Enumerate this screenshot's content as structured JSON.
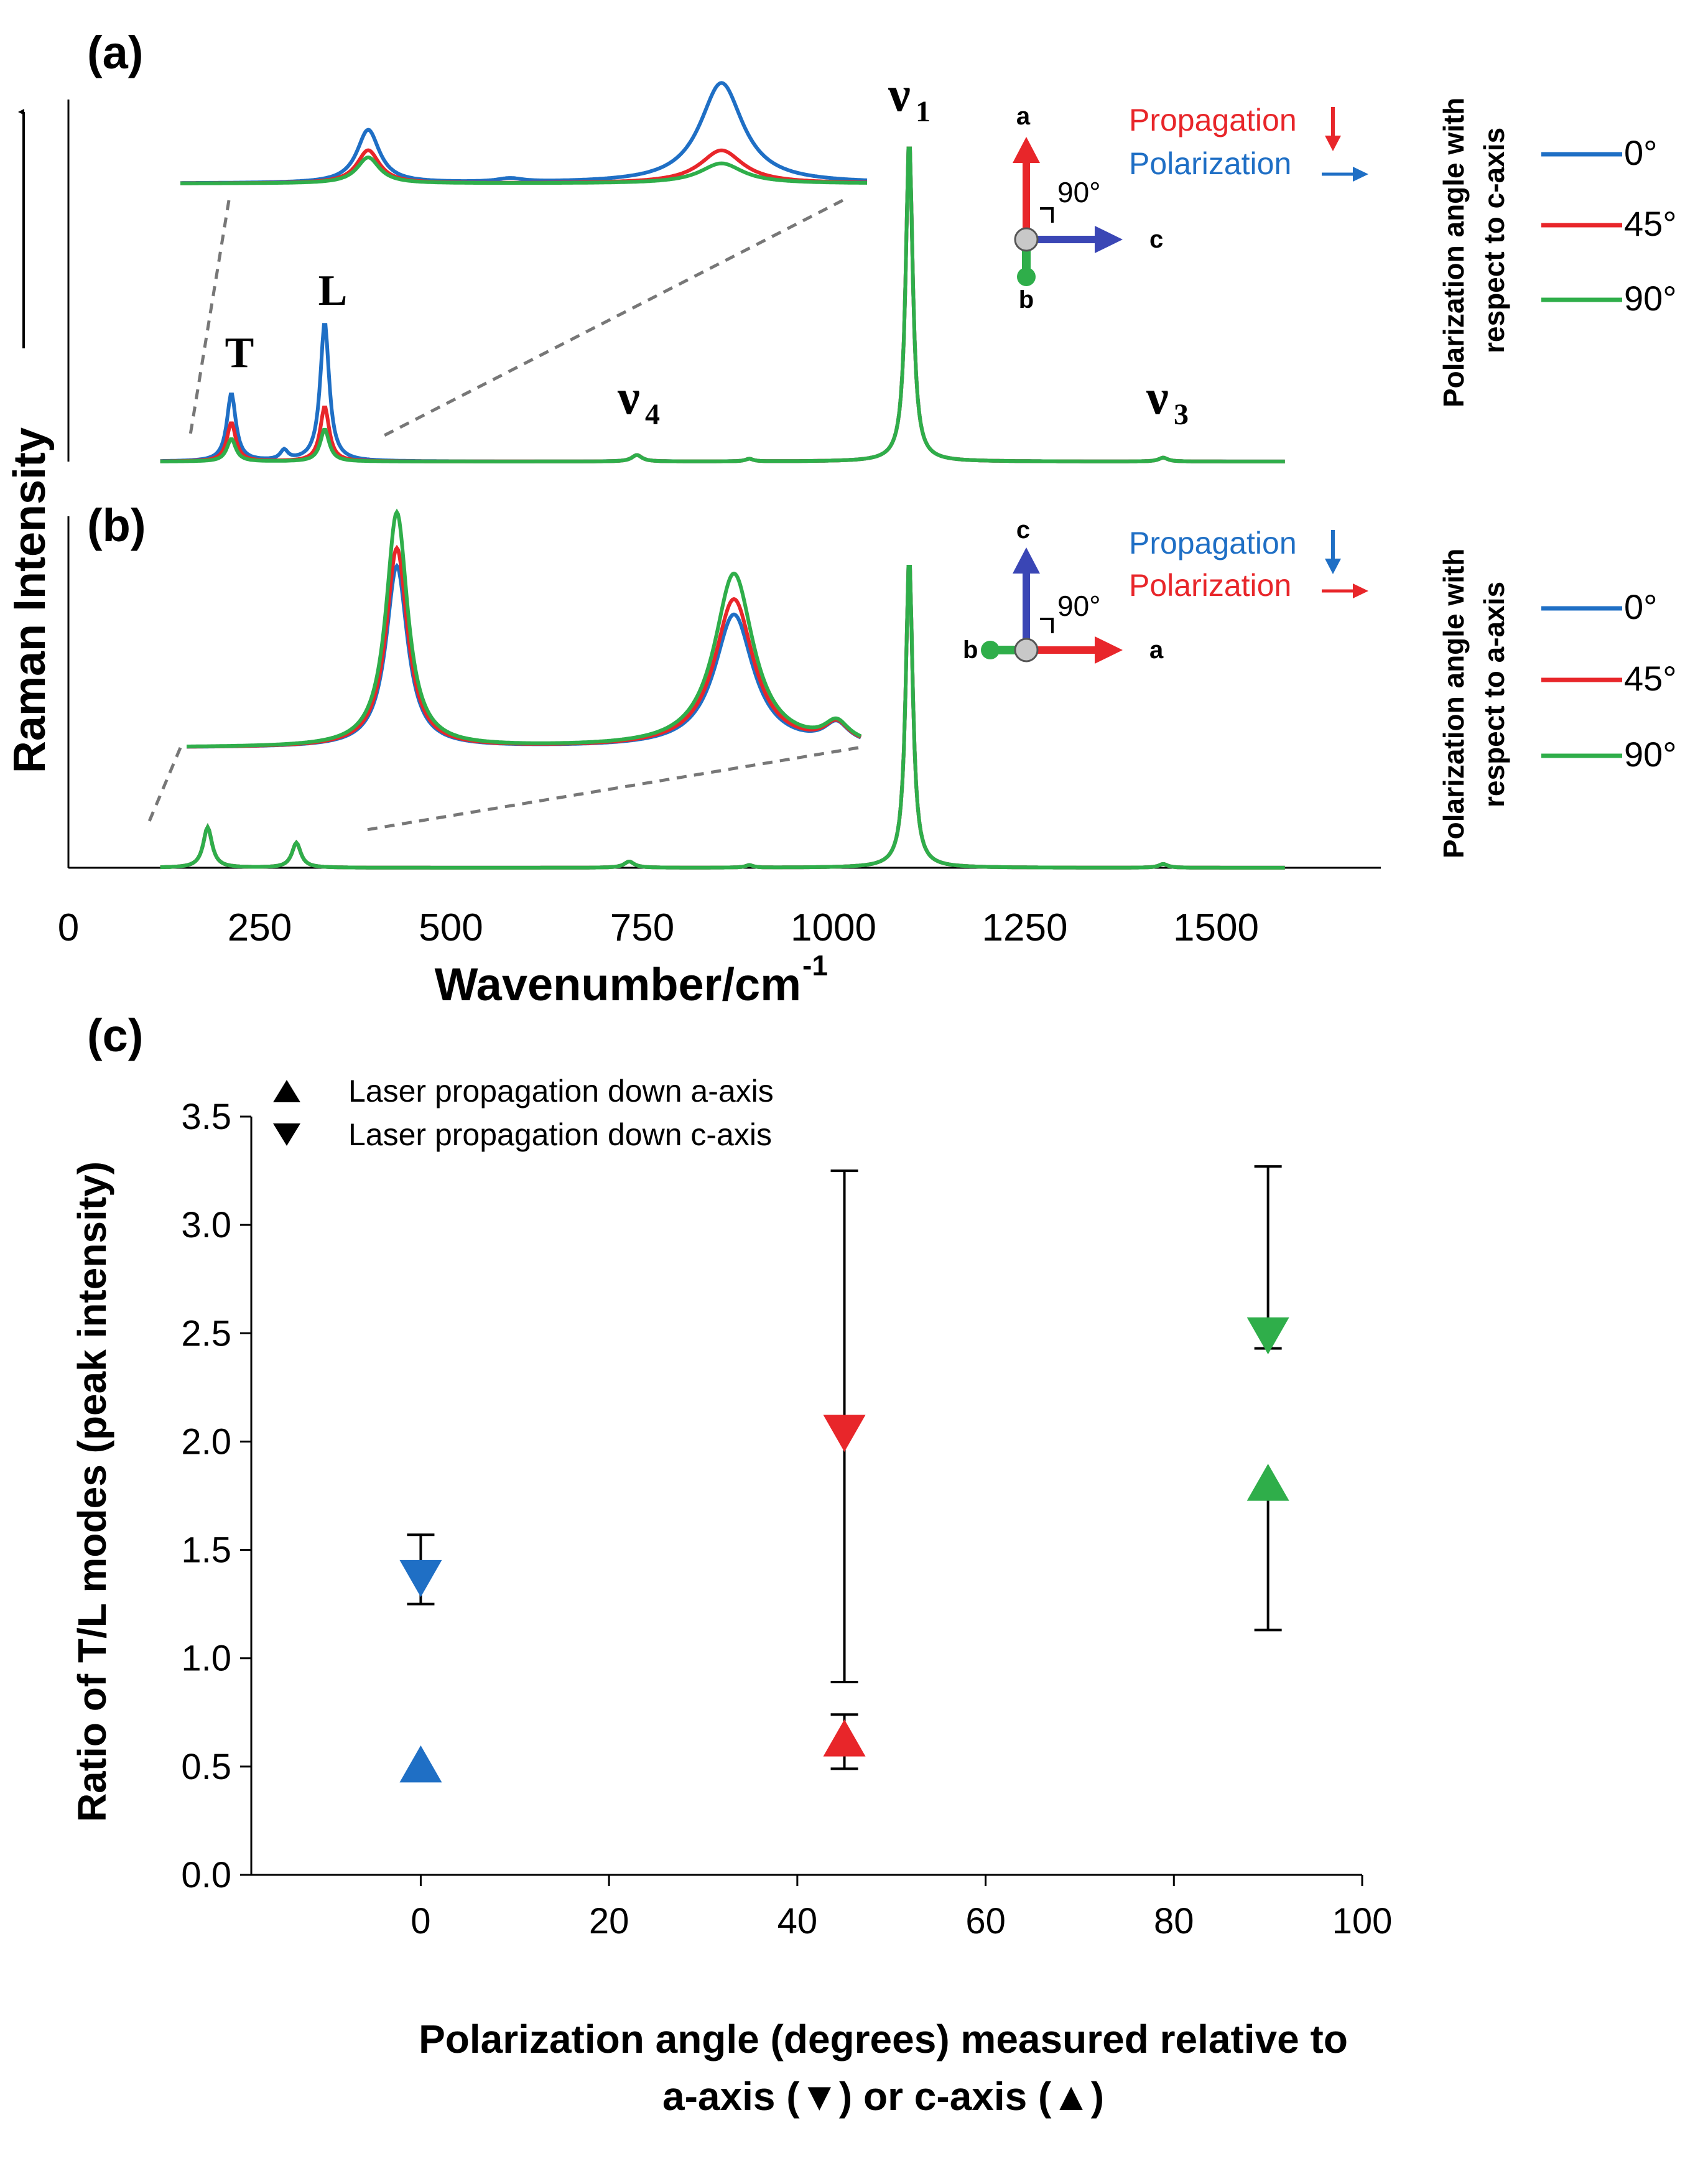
{
  "chart_data": [
    {
      "panel": "(a)",
      "type": "line",
      "title": "",
      "ylabel": "Raman Intensity",
      "peak_labels": [
        "T",
        "L",
        "ν4",
        "ν1",
        "ν3"
      ],
      "peak_label_subs": {
        "ν4": "4",
        "ν1": "1",
        "ν3": "3"
      },
      "peak_label_base": "ν",
      "peaks_wavenumber": {
        "T": 213,
        "L": 335,
        "ν4": 743,
        "ν1": 1099,
        "ν3": 1431
      },
      "legend_title": "Polarization angle with respect to c-axis",
      "legend_title_lines": [
        "Polarization angle with",
        "respect to c-axis"
      ],
      "series": [
        {
          "name": "0°",
          "color": "#1f6fc5",
          "main_peaks": {
            "T": 0.21,
            "L": 0.43,
            "ν1": 1.0
          },
          "inset_peaks": [
            0.45,
            0.85
          ]
        },
        {
          "name": "45°",
          "color": "#e8262a",
          "main_peaks": {
            "T": 0.12,
            "L": 0.17,
            "ν1": 1.0
          },
          "inset_peaks": [
            0.28,
            0.28
          ]
        },
        {
          "name": "90°",
          "color": "#2fae4a",
          "main_peaks": {
            "T": 0.07,
            "L": 0.1,
            "ν1": 1.0
          },
          "inset_peaks": [
            0.22,
            0.17
          ]
        }
      ],
      "geometry": {
        "propagation": "Propagation",
        "polarization": "Polarization",
        "propagation_color": "#e8262a",
        "polarization_color": "#1f6fc5",
        "axes": [
          "a",
          "b",
          "c"
        ],
        "angle": "90°"
      }
    },
    {
      "panel": "(b)",
      "type": "line",
      "xlabel": "Wavenumber/cm",
      "xlabel_sup": "-1",
      "xlim": [
        0,
        1700
      ],
      "xticks": [
        0,
        250,
        500,
        750,
        1000,
        1250,
        1500
      ],
      "legend_title": "Polarization angle with respect to a-axis",
      "legend_title_lines": [
        "Polarization angle with",
        "respect to a-axis"
      ],
      "series": [
        {
          "name": "0°",
          "color": "#1f6fc5",
          "main_peaks": {
            "T": 0.13,
            "L": 0.08,
            "ν1": 1.0
          },
          "inset_peaks": [
            0.71,
            0.52
          ]
        },
        {
          "name": "45°",
          "color": "#e8262a",
          "main_peaks": {
            "T": 0.13,
            "L": 0.08,
            "ν1": 1.0
          },
          "inset_peaks": [
            0.78,
            0.58
          ]
        },
        {
          "name": "90°",
          "color": "#2fae4a",
          "main_peaks": {
            "T": 0.13,
            "L": 0.08,
            "ν1": 1.0
          },
          "inset_peaks": [
            0.92,
            0.68
          ]
        }
      ],
      "geometry": {
        "propagation": "Propagation",
        "polarization": "Polarization",
        "propagation_color": "#1f6fc5",
        "polarization_color": "#e8262a",
        "axes": [
          "c",
          "b",
          "a"
        ],
        "angle": "90°"
      }
    },
    {
      "panel": "(c)",
      "type": "scatter",
      "xlabel_lines": [
        "Polarization angle (degrees) measured relative to",
        "a-axis (▼) or c-axis (▲)"
      ],
      "ylabel": "Ratio of T/L modes (peak intensity)",
      "xlim": [
        -18,
        100
      ],
      "ylim": [
        0,
        3.5
      ],
      "xticks": [
        0,
        20,
        40,
        60,
        80,
        100
      ],
      "yticks": [
        "0.0",
        "0.5",
        "1.0",
        "1.5",
        "2.0",
        "2.5",
        "3.0",
        "3.5"
      ],
      "legend": [
        {
          "marker": "up",
          "label": "Laser propagation down a-axis"
        },
        {
          "marker": "down",
          "label": "Laser propagation down c-axis"
        }
      ],
      "points": [
        {
          "x": 0,
          "y": 0.5,
          "err_lo": 0.5,
          "err_hi": 0.5,
          "marker": "up",
          "color": "#1f6fc5"
        },
        {
          "x": 0,
          "y": 1.38,
          "err_lo": 1.25,
          "err_hi": 1.57,
          "marker": "down",
          "color": "#1f6fc5"
        },
        {
          "x": 45,
          "y": 0.62,
          "err_lo": 0.49,
          "err_hi": 0.74,
          "marker": "up",
          "color": "#e8262a"
        },
        {
          "x": 45,
          "y": 2.05,
          "err_lo": 0.89,
          "err_hi": 3.25,
          "marker": "down",
          "color": "#e8262a"
        },
        {
          "x": 90,
          "y": 1.8,
          "err_lo": 1.13,
          "err_hi": 1.76,
          "marker": "up",
          "color": "#2fae4a"
        },
        {
          "x": 90,
          "y": 2.5,
          "err_lo": 2.43,
          "err_hi": 3.27,
          "marker": "down",
          "color": "#2fae4a"
        }
      ]
    }
  ]
}
